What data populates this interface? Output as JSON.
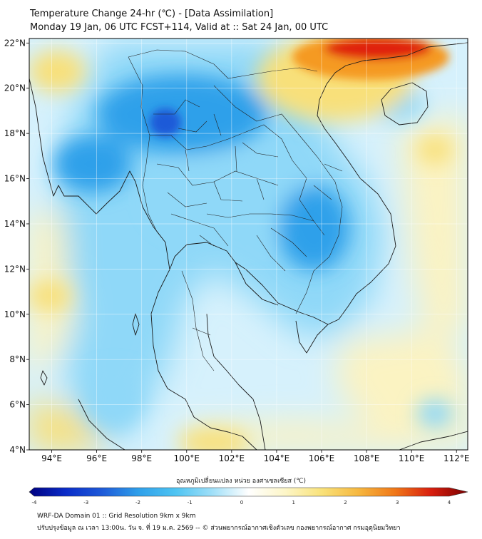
{
  "header": {
    "title_line1": "Temperature Change 24-hr (℃) - [Data Assimilation]",
    "title_line2": "Monday 19 Jan, 06 UTC FCST+114, Valid at :: Sat 24 Jan, 00 UTC"
  },
  "map": {
    "lon_ticks": [
      94,
      96,
      98,
      100,
      102,
      104,
      106,
      108,
      110,
      112
    ],
    "lon_labels": [
      "94°E",
      "96°E",
      "98°E",
      "100°E",
      "102°E",
      "104°E",
      "106°E",
      "108°E",
      "110°E",
      "112°E"
    ],
    "lat_ticks": [
      22,
      20,
      18,
      16,
      14,
      12,
      10,
      8,
      6,
      4
    ],
    "lat_labels": [
      "22°N",
      "20°N",
      "18°N",
      "16°N",
      "14°N",
      "12°N",
      "10°N",
      "8°N",
      "6°N",
      "4°N"
    ],
    "lon_range": [
      93,
      112.5
    ],
    "lat_range": [
      4,
      22.2
    ],
    "colors": {
      "deep_blue": "#1e5ad8",
      "blue": "#2fa0ea",
      "light_blue": "#8fd8f8",
      "pale_blue": "#d6f1fc",
      "pale_yellow": "#fbf3c2",
      "yellow": "#f8e07a",
      "orange": "#f59a22",
      "red": "#e02010"
    }
  },
  "colorbar": {
    "label": "อุณหภูมิเปลี่ยนแปลง หน่วย องศาเซลเซียส (℃)",
    "ticks": [
      -4,
      -3,
      -2,
      -1,
      0,
      1,
      2,
      3,
      4
    ],
    "tick_labels": [
      "-4",
      "-3",
      "-2",
      "-1",
      "0",
      "1",
      "2",
      "3",
      "4"
    ],
    "min": -4,
    "max": 4,
    "gradient": [
      "#000080",
      "#0a2cc8",
      "#1e5ad8",
      "#2fa0ea",
      "#4ec4f2",
      "#9fdff8",
      "#ffffff",
      "#fdf6c8",
      "#f9e27a",
      "#f6b840",
      "#f07818",
      "#d81e0e",
      "#7a0000"
    ]
  },
  "footer": {
    "line1": "WRF-DA Domain 01 :: Grid Resolution 9km x 9km",
    "line2": "ปรับปรุงข้อมูล ณ เวลา 13:00น. วัน จ. ที่ 19 ม.ค. 2569 -- © ส่วนพยากรณ์อากาศเชิงตัวเลข กองพยากรณ์อากาศ กรมอุตุนิยมวิทยา"
  }
}
